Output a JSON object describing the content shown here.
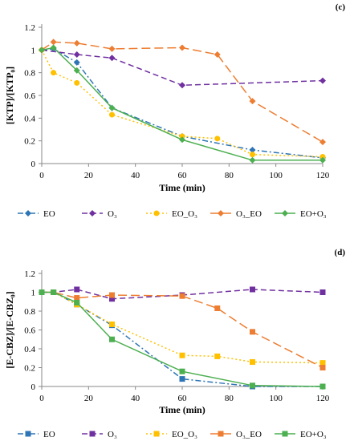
{
  "chart_data": [
    {
      "type": "line",
      "panel": "(c)",
      "xlabel": "Time (min)",
      "ylabel": "[KTP]/[KTP₀]",
      "xlim": [
        0,
        120
      ],
      "ylim": [
        0,
        1.2
      ],
      "xticks": [
        0,
        20,
        40,
        60,
        80,
        100,
        120
      ],
      "xtick_labels": [
        "0",
        "20",
        "40",
        "60",
        "80",
        "100",
        "120"
      ],
      "yticks": [
        0,
        0.2,
        0.4,
        0.6,
        0.8,
        1.0,
        1.2
      ],
      "ytick_labels": [
        "0",
        "0.2",
        "0.4",
        "0.6",
        "0.8",
        "1",
        "1.2"
      ],
      "grid": false,
      "legend_position": "bottom",
      "series": [
        {
          "name": "EO",
          "color": "#2e75b6",
          "marker": "diamond",
          "dash": "dashdot",
          "x": [
            0,
            5,
            15,
            30,
            60,
            90,
            120
          ],
          "y": [
            1.0,
            1.01,
            0.89,
            0.49,
            0.24,
            0.12,
            0.05
          ]
        },
        {
          "name": "O₃",
          "color": "#7030a0",
          "marker": "diamond",
          "dash": "dash",
          "x": [
            0,
            15,
            30,
            60,
            120
          ],
          "y": [
            1.0,
            0.96,
            0.93,
            0.69,
            0.73
          ]
        },
        {
          "name": "EO_O₃",
          "color": "#ffc000",
          "marker": "circle",
          "dash": "dot",
          "x": [
            0,
            5,
            15,
            30,
            60,
            75,
            90,
            120
          ],
          "y": [
            1.0,
            0.8,
            0.71,
            0.43,
            0.24,
            0.22,
            0.08,
            0.06
          ]
        },
        {
          "name": "O₃_EO",
          "color": "#ed7d31",
          "marker": "diamond",
          "dash": "longdash",
          "x": [
            0,
            5,
            15,
            30,
            60,
            75,
            90,
            120
          ],
          "y": [
            1.0,
            1.07,
            1.06,
            1.01,
            1.02,
            0.96,
            0.55,
            0.19
          ]
        },
        {
          "name": "EO+O₃",
          "color": "#4caf50",
          "marker": "diamond",
          "dash": "solid",
          "x": [
            0,
            5,
            15,
            30,
            60,
            90,
            120
          ],
          "y": [
            1.0,
            1.02,
            0.82,
            0.49,
            0.21,
            0.03,
            0.03
          ]
        }
      ]
    },
    {
      "type": "line",
      "panel": "(d)",
      "xlabel": "Time (min)",
      "ylabel": "[E-CBZ]/[E-CBZ₀]",
      "xlim": [
        0,
        120
      ],
      "ylim": [
        0,
        1.2
      ],
      "xticks": [
        0,
        20,
        40,
        60,
        80,
        100,
        120
      ],
      "xtick_labels": [
        "0",
        "20",
        "40",
        "60",
        "80",
        "100",
        "120"
      ],
      "yticks": [
        0,
        0.2,
        0.4,
        0.6,
        0.8,
        1.0,
        1.2
      ],
      "ytick_labels": [
        "0",
        "0.2",
        "0.4",
        "0.6",
        "0.8",
        "1",
        "1.2"
      ],
      "grid": false,
      "legend_position": "bottom",
      "series": [
        {
          "name": "EO",
          "color": "#2e75b6",
          "marker": "square",
          "dash": "dashdot",
          "x": [
            0,
            5,
            15,
            30,
            60,
            90,
            120
          ],
          "y": [
            1.0,
            1.0,
            0.87,
            0.65,
            0.08,
            0.0,
            0.0
          ]
        },
        {
          "name": "O₃",
          "color": "#7030a0",
          "marker": "square",
          "dash": "dash",
          "x": [
            0,
            5,
            15,
            30,
            60,
            90,
            120
          ],
          "y": [
            1.0,
            1.0,
            1.03,
            0.93,
            0.97,
            1.03,
            1.0
          ]
        },
        {
          "name": "EO_O₃",
          "color": "#ffc000",
          "marker": "square",
          "dash": "dot",
          "x": [
            0,
            5,
            15,
            30,
            60,
            75,
            90,
            120
          ],
          "y": [
            1.0,
            1.0,
            0.87,
            0.66,
            0.33,
            0.32,
            0.26,
            0.25
          ]
        },
        {
          "name": "O₃_EO",
          "color": "#ed7d31",
          "marker": "square",
          "dash": "longdash",
          "x": [
            0,
            5,
            15,
            30,
            60,
            75,
            90,
            120
          ],
          "y": [
            1.0,
            1.0,
            0.94,
            0.97,
            0.96,
            0.83,
            0.58,
            0.2
          ]
        },
        {
          "name": "EO+O₃",
          "color": "#4caf50",
          "marker": "square",
          "dash": "solid",
          "x": [
            0,
            5,
            15,
            30,
            60,
            90,
            120
          ],
          "y": [
            1.0,
            1.0,
            0.89,
            0.5,
            0.16,
            0.01,
            0.0
          ]
        }
      ]
    }
  ]
}
